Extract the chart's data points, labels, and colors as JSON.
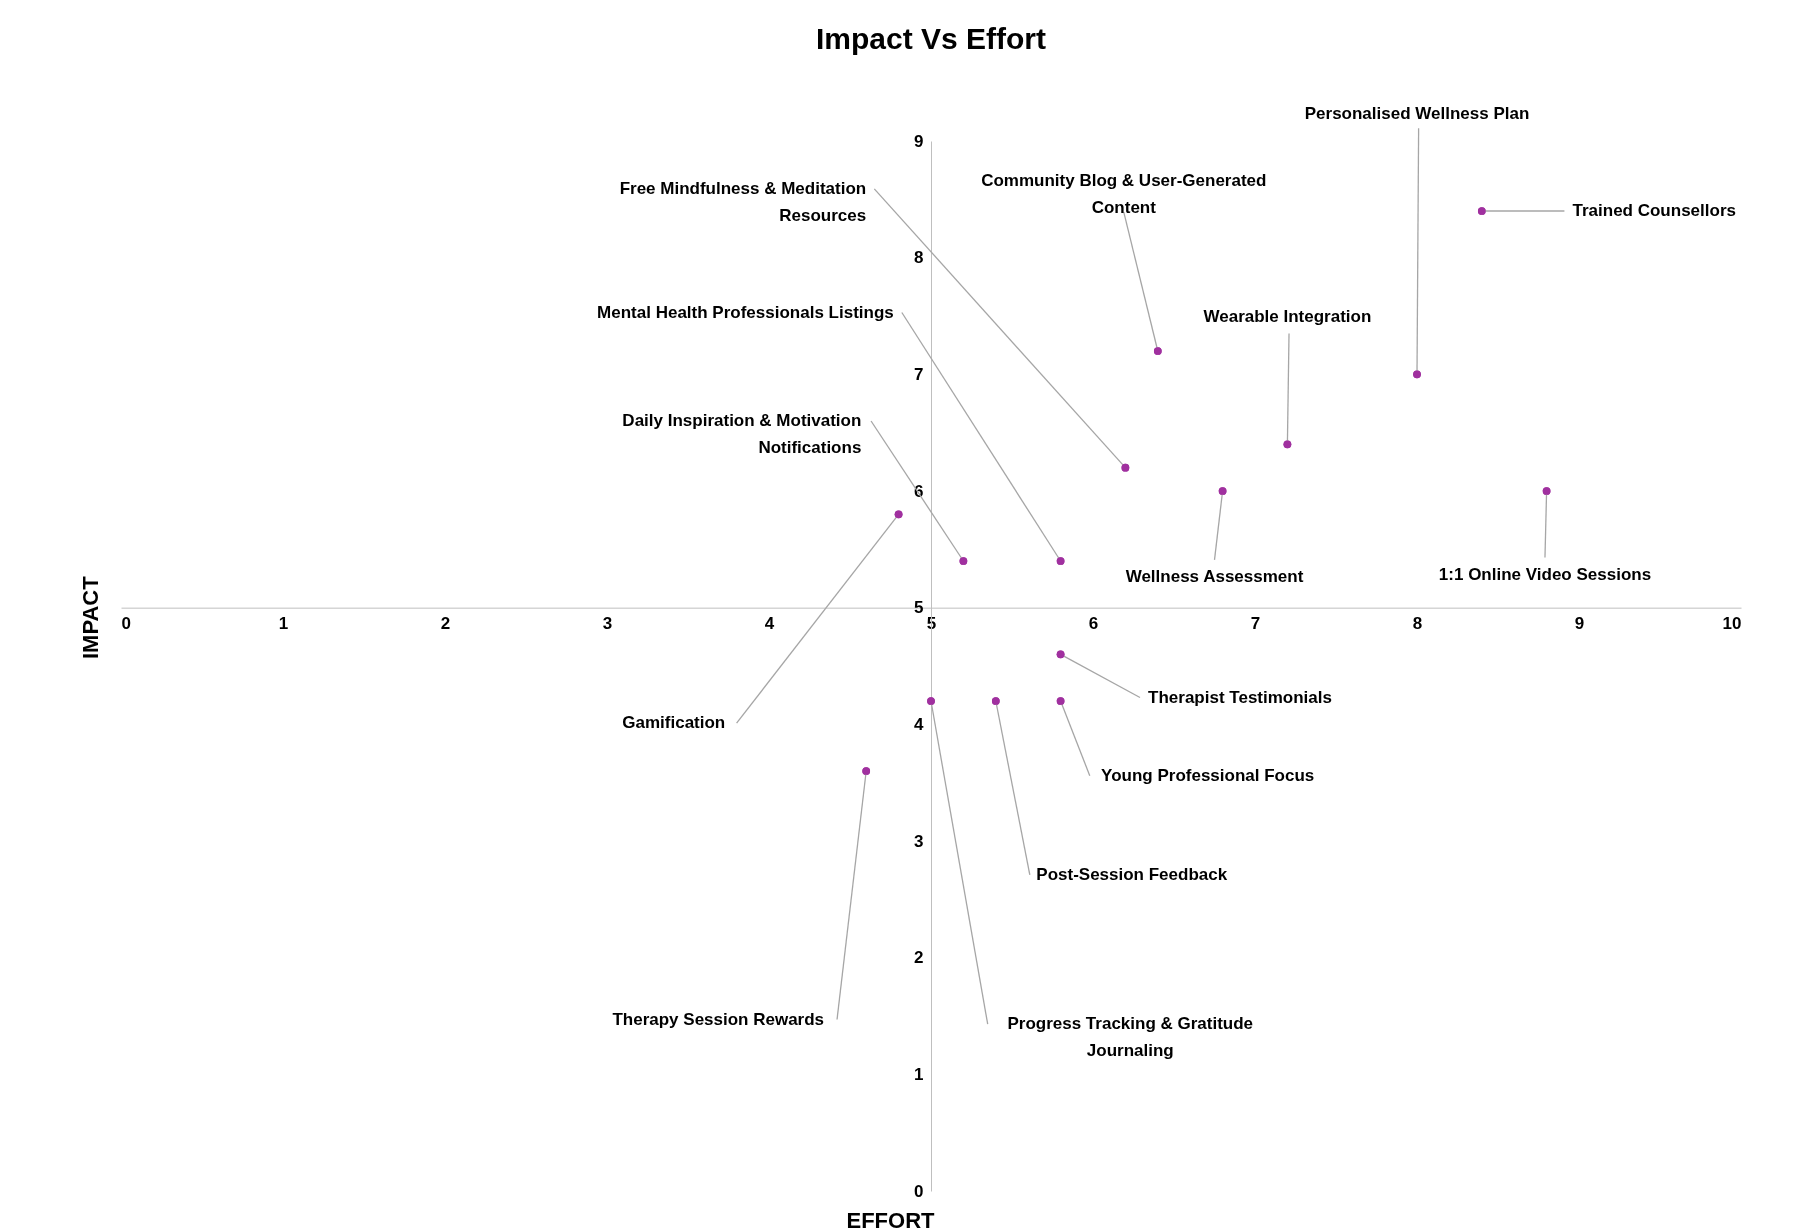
{
  "chart_data": {
    "type": "scatter",
    "title": "Impact Vs Effort",
    "xlabel": "EFFORT",
    "ylabel": "IMPACT",
    "x": [
      8.4,
      8.0,
      6.4,
      7.2,
      6.2,
      6.8,
      8.8,
      5.8,
      5.2,
      4.8,
      5.8,
      5.8,
      5.4,
      5.0,
      4.6
    ],
    "values": [
      8.4,
      7.0,
      7.2,
      6.4,
      6.2,
      6.0,
      6.0,
      5.4,
      5.4,
      5.8,
      4.6,
      4.2,
      4.2,
      4.2,
      3.6
    ],
    "color": "#a0309f",
    "marker": "circle",
    "xlim": [
      0,
      10
    ],
    "xticks": [
      0,
      1,
      2,
      3,
      4,
      5,
      6,
      7,
      8,
      9,
      10
    ],
    "ylim": [
      0,
      9
    ],
    "yticks": [
      0,
      1,
      2,
      3,
      4,
      5,
      6,
      7,
      8,
      9
    ],
    "annotations": [
      {
        "text": "Trained Counsellors",
        "x": 8.4,
        "y": 8.4
      },
      {
        "text": "Personalised Wellness Plan",
        "x": 8.0,
        "y": 7.0
      },
      {
        "text": "Community Blog & User-Generated Content",
        "x": 6.4,
        "y": 7.2
      },
      {
        "text": "Wearable Integration",
        "x": 7.2,
        "y": 6.4
      },
      {
        "text": "Free Mindfulness & Meditation Resources",
        "x": 6.2,
        "y": 6.2
      },
      {
        "text": "Wellness Assessment",
        "x": 6.8,
        "y": 6.0
      },
      {
        "text": "1:1 Online Video Sessions",
        "x": 8.8,
        "y": 6.0
      },
      {
        "text": "Mental Health Professionals Listings",
        "x": 5.8,
        "y": 5.4
      },
      {
        "text": "Daily Inspiration & Motivation Notifications",
        "x": 5.2,
        "y": 5.4
      },
      {
        "text": "Gamification",
        "x": 4.8,
        "y": 5.8
      },
      {
        "text": "Therapist Testimonials",
        "x": 5.8,
        "y": 4.6
      },
      {
        "text": "Young Professional Focus",
        "x": 5.8,
        "y": 4.2
      },
      {
        "text": "Post-Session Feedback",
        "x": 5.4,
        "y": 4.2
      },
      {
        "text": "Progress Tracking & Gratitude Journaling",
        "x": 5.0,
        "y": 4.2
      },
      {
        "text": "Therapy Session Rewards",
        "x": 4.6,
        "y": 3.6
      }
    ]
  }
}
